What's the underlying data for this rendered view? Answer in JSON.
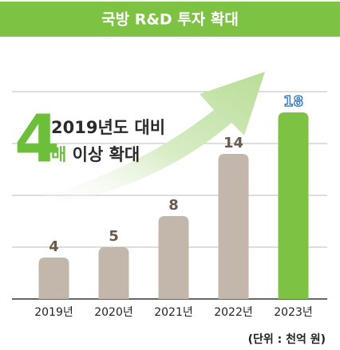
{
  "chart_data": {
    "type": "bar",
    "title": "국방 R&D 투자 확대",
    "categories": [
      "2019년",
      "2020년",
      "2021년",
      "2022년",
      "2023년"
    ],
    "values": [
      4,
      5,
      8,
      14,
      18
    ],
    "colors": [
      "#c3b7ab",
      "#c3b7ab",
      "#c3b7ab",
      "#c3b7ab",
      "#7dc242"
    ],
    "ylim": [
      0,
      20
    ],
    "yticks": [
      0,
      5,
      10,
      15,
      20
    ],
    "grid": true,
    "annotation": {
      "number": "4",
      "line1": "2019년도 대비",
      "highlight": "배",
      "line2": "이상 확대"
    },
    "unit": "(단위 : 천억 원)"
  }
}
